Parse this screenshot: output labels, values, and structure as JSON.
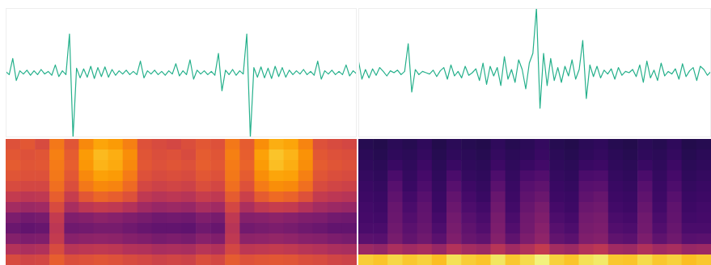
{
  "chart_data": [
    {
      "type": "line",
      "color": "#25b08b",
      "tick_labels": false,
      "xlim": [
        0,
        99
      ],
      "ylim": [
        -1,
        1
      ],
      "x": [
        0,
        1,
        2,
        3,
        4,
        5,
        6,
        7,
        8,
        9,
        10,
        11,
        12,
        13,
        14,
        15,
        16,
        17,
        18,
        19,
        20,
        21,
        22,
        23,
        24,
        25,
        26,
        27,
        28,
        29,
        30,
        31,
        32,
        33,
        34,
        35,
        36,
        37,
        38,
        39,
        40,
        41,
        42,
        43,
        44,
        45,
        46,
        47,
        48,
        49,
        50,
        51,
        52,
        53,
        54,
        55,
        56,
        57,
        58,
        59,
        60,
        61,
        62,
        63,
        64,
        65,
        66,
        67,
        68,
        69,
        70,
        71,
        72,
        73,
        74,
        75,
        76,
        77,
        78,
        79,
        80,
        81,
        82,
        83,
        84,
        85,
        86,
        87,
        88,
        89,
        90,
        91,
        92,
        93,
        94,
        95,
        96,
        97,
        98,
        99
      ],
      "values": [
        0.02,
        -0.03,
        0.22,
        -0.12,
        0.03,
        -0.02,
        0.04,
        -0.04,
        0.03,
        -0.03,
        0.05,
        -0.02,
        0.02,
        -0.04,
        0.12,
        -0.06,
        0.03,
        -0.03,
        0.6,
        -1.0,
        0.07,
        -0.08,
        0.06,
        -0.07,
        0.1,
        -0.09,
        0.08,
        -0.06,
        0.09,
        -0.07,
        0.05,
        -0.04,
        0.03,
        -0.02,
        0.04,
        -0.03,
        0.02,
        -0.03,
        0.18,
        -0.08,
        0.03,
        -0.02,
        0.04,
        -0.03,
        0.02,
        -0.04,
        0.03,
        -0.02,
        0.14,
        -0.05,
        0.03,
        -0.03,
        0.2,
        -0.1,
        0.04,
        -0.02,
        0.03,
        -0.03,
        0.02,
        -0.04,
        0.3,
        -0.28,
        0.04,
        -0.03,
        0.05,
        -0.04,
        0.03,
        -0.02,
        0.6,
        -1.0,
        0.08,
        -0.07,
        0.09,
        -0.08,
        0.07,
        -0.09,
        0.1,
        -0.06,
        0.08,
        -0.07,
        0.04,
        -0.03,
        0.03,
        -0.02,
        0.05,
        -0.03,
        0.02,
        -0.04,
        0.18,
        -0.1,
        0.03,
        -0.02,
        0.04,
        -0.03,
        0.02,
        -0.03,
        0.12,
        -0.05,
        0.03,
        -0.02
      ]
    },
    {
      "type": "line",
      "color": "#25b08b",
      "tick_labels": false,
      "xlim": [
        0,
        99
      ],
      "ylim": [
        -1,
        1
      ],
      "x": [
        0,
        1,
        2,
        3,
        4,
        5,
        6,
        7,
        8,
        9,
        10,
        11,
        12,
        13,
        14,
        15,
        16,
        17,
        18,
        19,
        20,
        21,
        22,
        23,
        24,
        25,
        26,
        27,
        28,
        29,
        30,
        31,
        32,
        33,
        34,
        35,
        36,
        37,
        38,
        39,
        40,
        41,
        42,
        43,
        44,
        45,
        46,
        47,
        48,
        49,
        50,
        51,
        52,
        53,
        54,
        55,
        56,
        57,
        58,
        59,
        60,
        61,
        62,
        63,
        64,
        65,
        66,
        67,
        68,
        69,
        70,
        71,
        72,
        73,
        74,
        75,
        76,
        77,
        78,
        79,
        80,
        81,
        82,
        83,
        84,
        85,
        86,
        87,
        88,
        89,
        90,
        91,
        92,
        93,
        94,
        95,
        96,
        97,
        98,
        99
      ],
      "values": [
        0.2,
        -0.1,
        0.05,
        -0.08,
        0.06,
        -0.04,
        0.08,
        0.02,
        -0.05,
        0.03,
        0.0,
        0.04,
        -0.03,
        0.02,
        0.45,
        -0.3,
        0.05,
        -0.03,
        0.02,
        0.0,
        -0.02,
        0.04,
        -0.06,
        0.03,
        0.08,
        -0.1,
        0.12,
        -0.05,
        0.02,
        -0.08,
        0.1,
        -0.04,
        0.0,
        0.06,
        -0.12,
        0.15,
        -0.18,
        0.1,
        -0.05,
        0.08,
        -0.2,
        0.25,
        -0.1,
        0.05,
        -0.15,
        0.2,
        0.05,
        -0.25,
        0.15,
        0.3,
        1.0,
        -0.55,
        0.3,
        -0.2,
        0.22,
        -0.12,
        0.08,
        -0.15,
        0.1,
        -0.05,
        0.2,
        -0.1,
        0.05,
        0.5,
        -0.4,
        0.12,
        -0.06,
        0.1,
        -0.08,
        0.04,
        -0.02,
        0.06,
        -0.1,
        0.08,
        -0.04,
        0.02,
        0.0,
        0.05,
        -0.06,
        0.12,
        -0.15,
        0.18,
        -0.08,
        0.04,
        -0.12,
        0.15,
        -0.05,
        0.02,
        -0.02,
        0.06,
        -0.1,
        0.14,
        -0.06,
        0.03,
        0.08,
        -0.12,
        0.1,
        0.05,
        -0.04,
        0.02
      ]
    },
    {
      "type": "heatmap",
      "color": "inferno",
      "tick_labels": false,
      "zlim": [
        0,
        1
      ],
      "z": [
        [
          0.6,
          0.62,
          0.58,
          0.7,
          0.61,
          0.74,
          0.8,
          0.78,
          0.72,
          0.6,
          0.58,
          0.57,
          0.59,
          0.62,
          0.6,
          0.7,
          0.63,
          0.75,
          0.82,
          0.8,
          0.73,
          0.6,
          0.58,
          0.57
        ],
        [
          0.62,
          0.6,
          0.61,
          0.72,
          0.63,
          0.78,
          0.84,
          0.82,
          0.75,
          0.61,
          0.59,
          0.6,
          0.58,
          0.63,
          0.61,
          0.72,
          0.64,
          0.79,
          0.86,
          0.83,
          0.76,
          0.62,
          0.6,
          0.59
        ],
        [
          0.63,
          0.61,
          0.62,
          0.71,
          0.64,
          0.77,
          0.83,
          0.81,
          0.74,
          0.62,
          0.6,
          0.61,
          0.6,
          0.64,
          0.62,
          0.71,
          0.65,
          0.78,
          0.85,
          0.82,
          0.75,
          0.63,
          0.61,
          0.6
        ],
        [
          0.61,
          0.6,
          0.6,
          0.7,
          0.62,
          0.74,
          0.79,
          0.78,
          0.71,
          0.6,
          0.58,
          0.59,
          0.58,
          0.62,
          0.6,
          0.7,
          0.63,
          0.75,
          0.8,
          0.79,
          0.72,
          0.61,
          0.59,
          0.58
        ],
        [
          0.58,
          0.57,
          0.57,
          0.68,
          0.59,
          0.7,
          0.74,
          0.73,
          0.67,
          0.57,
          0.55,
          0.56,
          0.55,
          0.59,
          0.57,
          0.68,
          0.6,
          0.71,
          0.75,
          0.74,
          0.68,
          0.58,
          0.56,
          0.55
        ],
        [
          0.52,
          0.5,
          0.51,
          0.64,
          0.53,
          0.62,
          0.66,
          0.64,
          0.6,
          0.51,
          0.49,
          0.5,
          0.49,
          0.53,
          0.51,
          0.63,
          0.54,
          0.63,
          0.67,
          0.65,
          0.6,
          0.52,
          0.5,
          0.49
        ],
        [
          0.44,
          0.42,
          0.43,
          0.58,
          0.45,
          0.5,
          0.52,
          0.51,
          0.48,
          0.43,
          0.41,
          0.42,
          0.41,
          0.45,
          0.43,
          0.57,
          0.46,
          0.51,
          0.53,
          0.52,
          0.48,
          0.44,
          0.42,
          0.41
        ],
        [
          0.34,
          0.32,
          0.33,
          0.52,
          0.35,
          0.36,
          0.38,
          0.37,
          0.35,
          0.33,
          0.31,
          0.32,
          0.31,
          0.35,
          0.33,
          0.51,
          0.36,
          0.37,
          0.38,
          0.37,
          0.35,
          0.34,
          0.32,
          0.31
        ],
        [
          0.3,
          0.28,
          0.29,
          0.5,
          0.31,
          0.32,
          0.33,
          0.33,
          0.31,
          0.29,
          0.28,
          0.28,
          0.27,
          0.31,
          0.29,
          0.49,
          0.32,
          0.33,
          0.34,
          0.33,
          0.31,
          0.3,
          0.28,
          0.28
        ],
        [
          0.36,
          0.34,
          0.35,
          0.52,
          0.37,
          0.38,
          0.39,
          0.38,
          0.36,
          0.35,
          0.33,
          0.34,
          0.33,
          0.37,
          0.35,
          0.51,
          0.38,
          0.39,
          0.4,
          0.39,
          0.37,
          0.36,
          0.34,
          0.33
        ],
        [
          0.48,
          0.46,
          0.47,
          0.58,
          0.49,
          0.5,
          0.51,
          0.5,
          0.48,
          0.47,
          0.45,
          0.46,
          0.45,
          0.49,
          0.47,
          0.57,
          0.5,
          0.51,
          0.52,
          0.51,
          0.49,
          0.48,
          0.46,
          0.45
        ],
        [
          0.58,
          0.56,
          0.57,
          0.64,
          0.59,
          0.6,
          0.61,
          0.6,
          0.58,
          0.57,
          0.55,
          0.56,
          0.55,
          0.59,
          0.57,
          0.63,
          0.6,
          0.61,
          0.62,
          0.61,
          0.59,
          0.58,
          0.56,
          0.55
        ]
      ]
    },
    {
      "type": "heatmap",
      "color": "inferno",
      "tick_labels": false,
      "zlim": [
        0,
        1
      ],
      "z": [
        [
          0.14,
          0.13,
          0.15,
          0.14,
          0.16,
          0.13,
          0.15,
          0.14,
          0.13,
          0.16,
          0.14,
          0.15,
          0.17,
          0.14,
          0.13,
          0.15,
          0.16,
          0.14,
          0.13,
          0.15,
          0.14,
          0.16,
          0.13,
          0.14
        ],
        [
          0.15,
          0.14,
          0.16,
          0.15,
          0.17,
          0.14,
          0.16,
          0.15,
          0.14,
          0.17,
          0.15,
          0.16,
          0.18,
          0.15,
          0.14,
          0.16,
          0.17,
          0.15,
          0.14,
          0.16,
          0.15,
          0.17,
          0.14,
          0.15
        ],
        [
          0.16,
          0.15,
          0.18,
          0.16,
          0.19,
          0.15,
          0.18,
          0.16,
          0.15,
          0.19,
          0.16,
          0.18,
          0.2,
          0.16,
          0.15,
          0.18,
          0.19,
          0.16,
          0.15,
          0.18,
          0.16,
          0.19,
          0.15,
          0.16
        ],
        [
          0.17,
          0.16,
          0.22,
          0.17,
          0.21,
          0.16,
          0.22,
          0.17,
          0.16,
          0.23,
          0.17,
          0.22,
          0.24,
          0.17,
          0.16,
          0.22,
          0.23,
          0.17,
          0.16,
          0.22,
          0.17,
          0.21,
          0.16,
          0.17
        ],
        [
          0.18,
          0.17,
          0.25,
          0.18,
          0.23,
          0.17,
          0.25,
          0.19,
          0.17,
          0.26,
          0.18,
          0.25,
          0.27,
          0.18,
          0.17,
          0.25,
          0.26,
          0.18,
          0.17,
          0.25,
          0.18,
          0.23,
          0.17,
          0.18
        ],
        [
          0.19,
          0.18,
          0.27,
          0.2,
          0.25,
          0.18,
          0.28,
          0.21,
          0.18,
          0.29,
          0.19,
          0.27,
          0.3,
          0.19,
          0.18,
          0.27,
          0.29,
          0.19,
          0.18,
          0.27,
          0.19,
          0.25,
          0.18,
          0.19
        ],
        [
          0.2,
          0.19,
          0.29,
          0.22,
          0.27,
          0.19,
          0.3,
          0.23,
          0.2,
          0.31,
          0.2,
          0.29,
          0.33,
          0.21,
          0.19,
          0.3,
          0.31,
          0.2,
          0.19,
          0.29,
          0.2,
          0.27,
          0.19,
          0.2
        ],
        [
          0.21,
          0.2,
          0.3,
          0.24,
          0.28,
          0.21,
          0.32,
          0.25,
          0.22,
          0.33,
          0.22,
          0.31,
          0.35,
          0.23,
          0.21,
          0.32,
          0.33,
          0.22,
          0.21,
          0.31,
          0.22,
          0.28,
          0.2,
          0.21
        ],
        [
          0.22,
          0.22,
          0.31,
          0.26,
          0.29,
          0.23,
          0.33,
          0.27,
          0.24,
          0.34,
          0.24,
          0.32,
          0.37,
          0.25,
          0.23,
          0.33,
          0.34,
          0.24,
          0.23,
          0.32,
          0.24,
          0.29,
          0.22,
          0.22
        ],
        [
          0.26,
          0.25,
          0.33,
          0.28,
          0.31,
          0.26,
          0.35,
          0.29,
          0.27,
          0.36,
          0.27,
          0.34,
          0.39,
          0.28,
          0.26,
          0.35,
          0.36,
          0.27,
          0.26,
          0.34,
          0.27,
          0.31,
          0.25,
          0.26
        ],
        [
          0.42,
          0.4,
          0.46,
          0.43,
          0.45,
          0.41,
          0.48,
          0.44,
          0.42,
          0.49,
          0.43,
          0.47,
          0.52,
          0.44,
          0.42,
          0.48,
          0.5,
          0.43,
          0.42,
          0.47,
          0.43,
          0.45,
          0.41,
          0.42
        ],
        [
          0.88,
          0.86,
          0.9,
          0.87,
          0.89,
          0.85,
          0.92,
          0.88,
          0.86,
          0.93,
          0.87,
          0.91,
          0.96,
          0.89,
          0.86,
          0.92,
          0.94,
          0.87,
          0.86,
          0.91,
          0.87,
          0.89,
          0.85,
          0.87
        ]
      ]
    }
  ]
}
